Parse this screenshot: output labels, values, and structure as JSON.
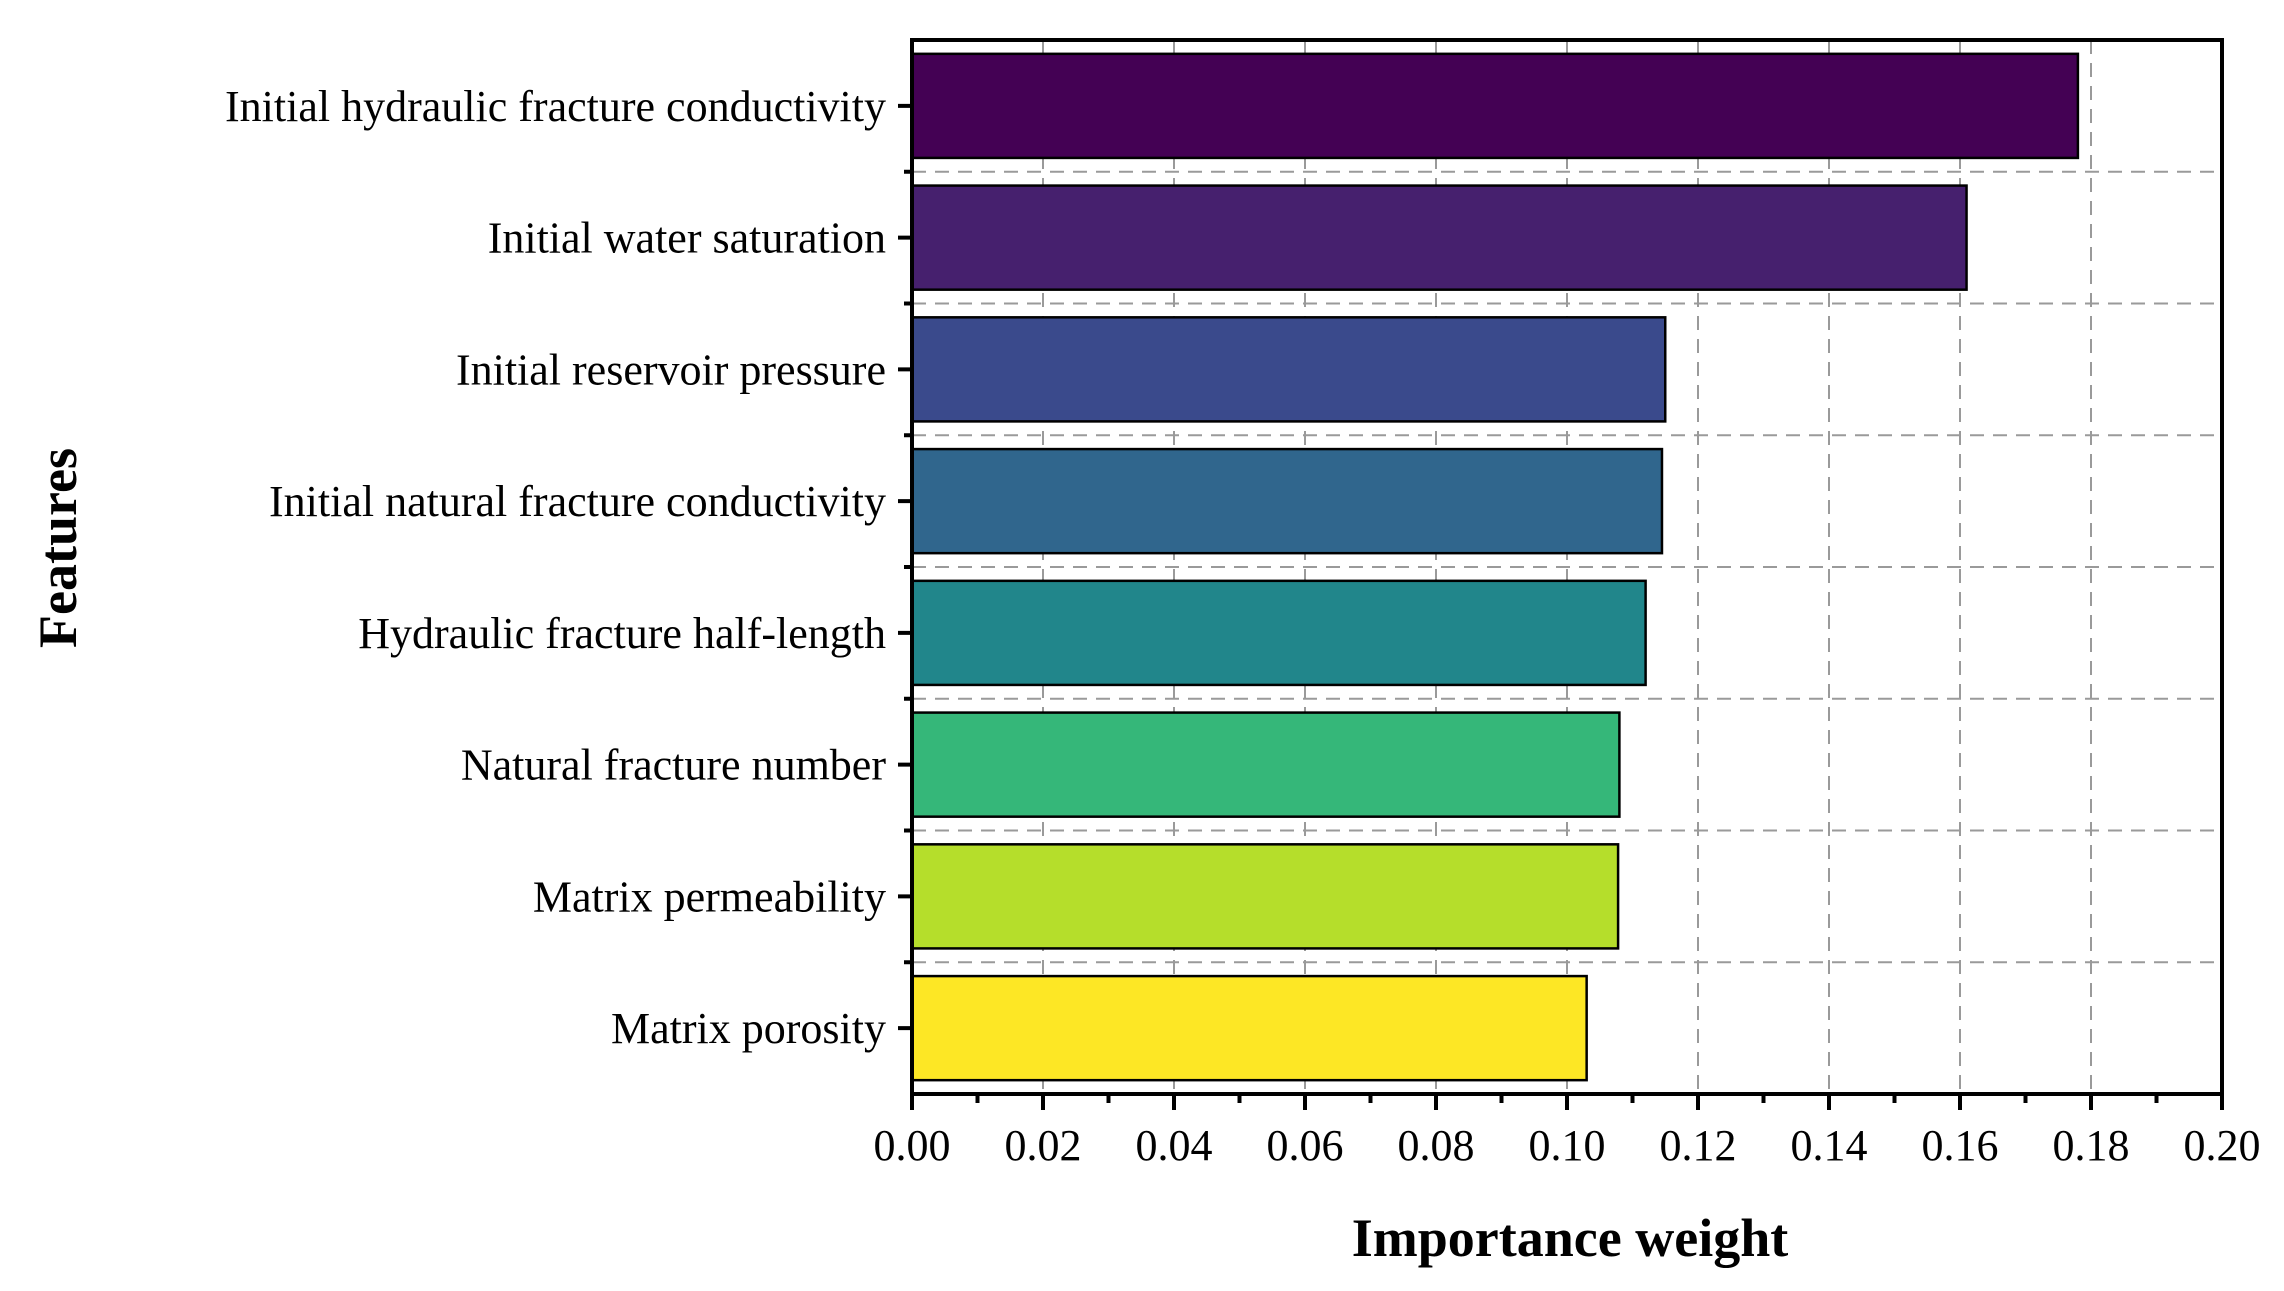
{
  "chart_data": {
    "type": "bar",
    "orientation": "horizontal",
    "title": "",
    "xlabel": "Importance weight",
    "ylabel": "Features",
    "xlim": [
      0.0,
      0.2
    ],
    "xticks": [
      "0.00",
      "0.02",
      "0.04",
      "0.06",
      "0.08",
      "0.10",
      "0.12",
      "0.14",
      "0.16",
      "0.18",
      "0.20"
    ],
    "grid": true,
    "categories": [
      "Initial hydraulic fracture conductivity",
      "Initial water saturation",
      "Initial reservoir pressure",
      "Initial natural fracture conductivity",
      "Hydraulic fracture half-length",
      "Natural fracture number",
      "Matrix permeability",
      "Matrix porosity"
    ],
    "values": [
      0.178,
      0.161,
      0.115,
      0.1145,
      0.112,
      0.108,
      0.1078,
      0.103
    ],
    "colors": [
      "#440154",
      "#46206e",
      "#3a4a8c",
      "#30668d",
      "#21868b",
      "#35b779",
      "#b5de2b",
      "#fde725"
    ]
  }
}
